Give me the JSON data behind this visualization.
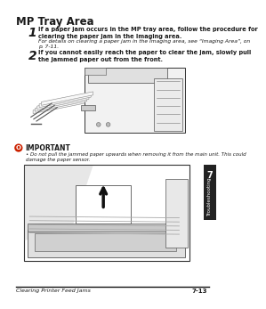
{
  "title": "MP Tray Area",
  "step1_num": "1",
  "step1_bold": "If a paper jam occurs in the MP tray area, follow the procedure for\nclearing the paper jam in the Imaging area.",
  "step1_note": "For details on clearing a paper jam in the Imaging area, see “Imaging Area”, on\np. 7-11.",
  "step2_num": "2",
  "step2_bold": "If you cannot easily reach the paper to clear the jam, slowly pull\nthe jammed paper out from the front.",
  "important_title": "IMPORTANT",
  "important_bullet": " Do not pull the jammed paper upwards when removing it from the main unit. This could\ndamage the paper sensor.",
  "footer_left": "Clearing Printer Feed Jams",
  "footer_right": "7-13",
  "sidebar_num": "7",
  "sidebar_text": "Troubleshooting",
  "bg_color": "#ffffff",
  "text_color": "#1a1a1a",
  "sidebar_bg": "#222222",
  "sidebar_fg": "#ffffff"
}
